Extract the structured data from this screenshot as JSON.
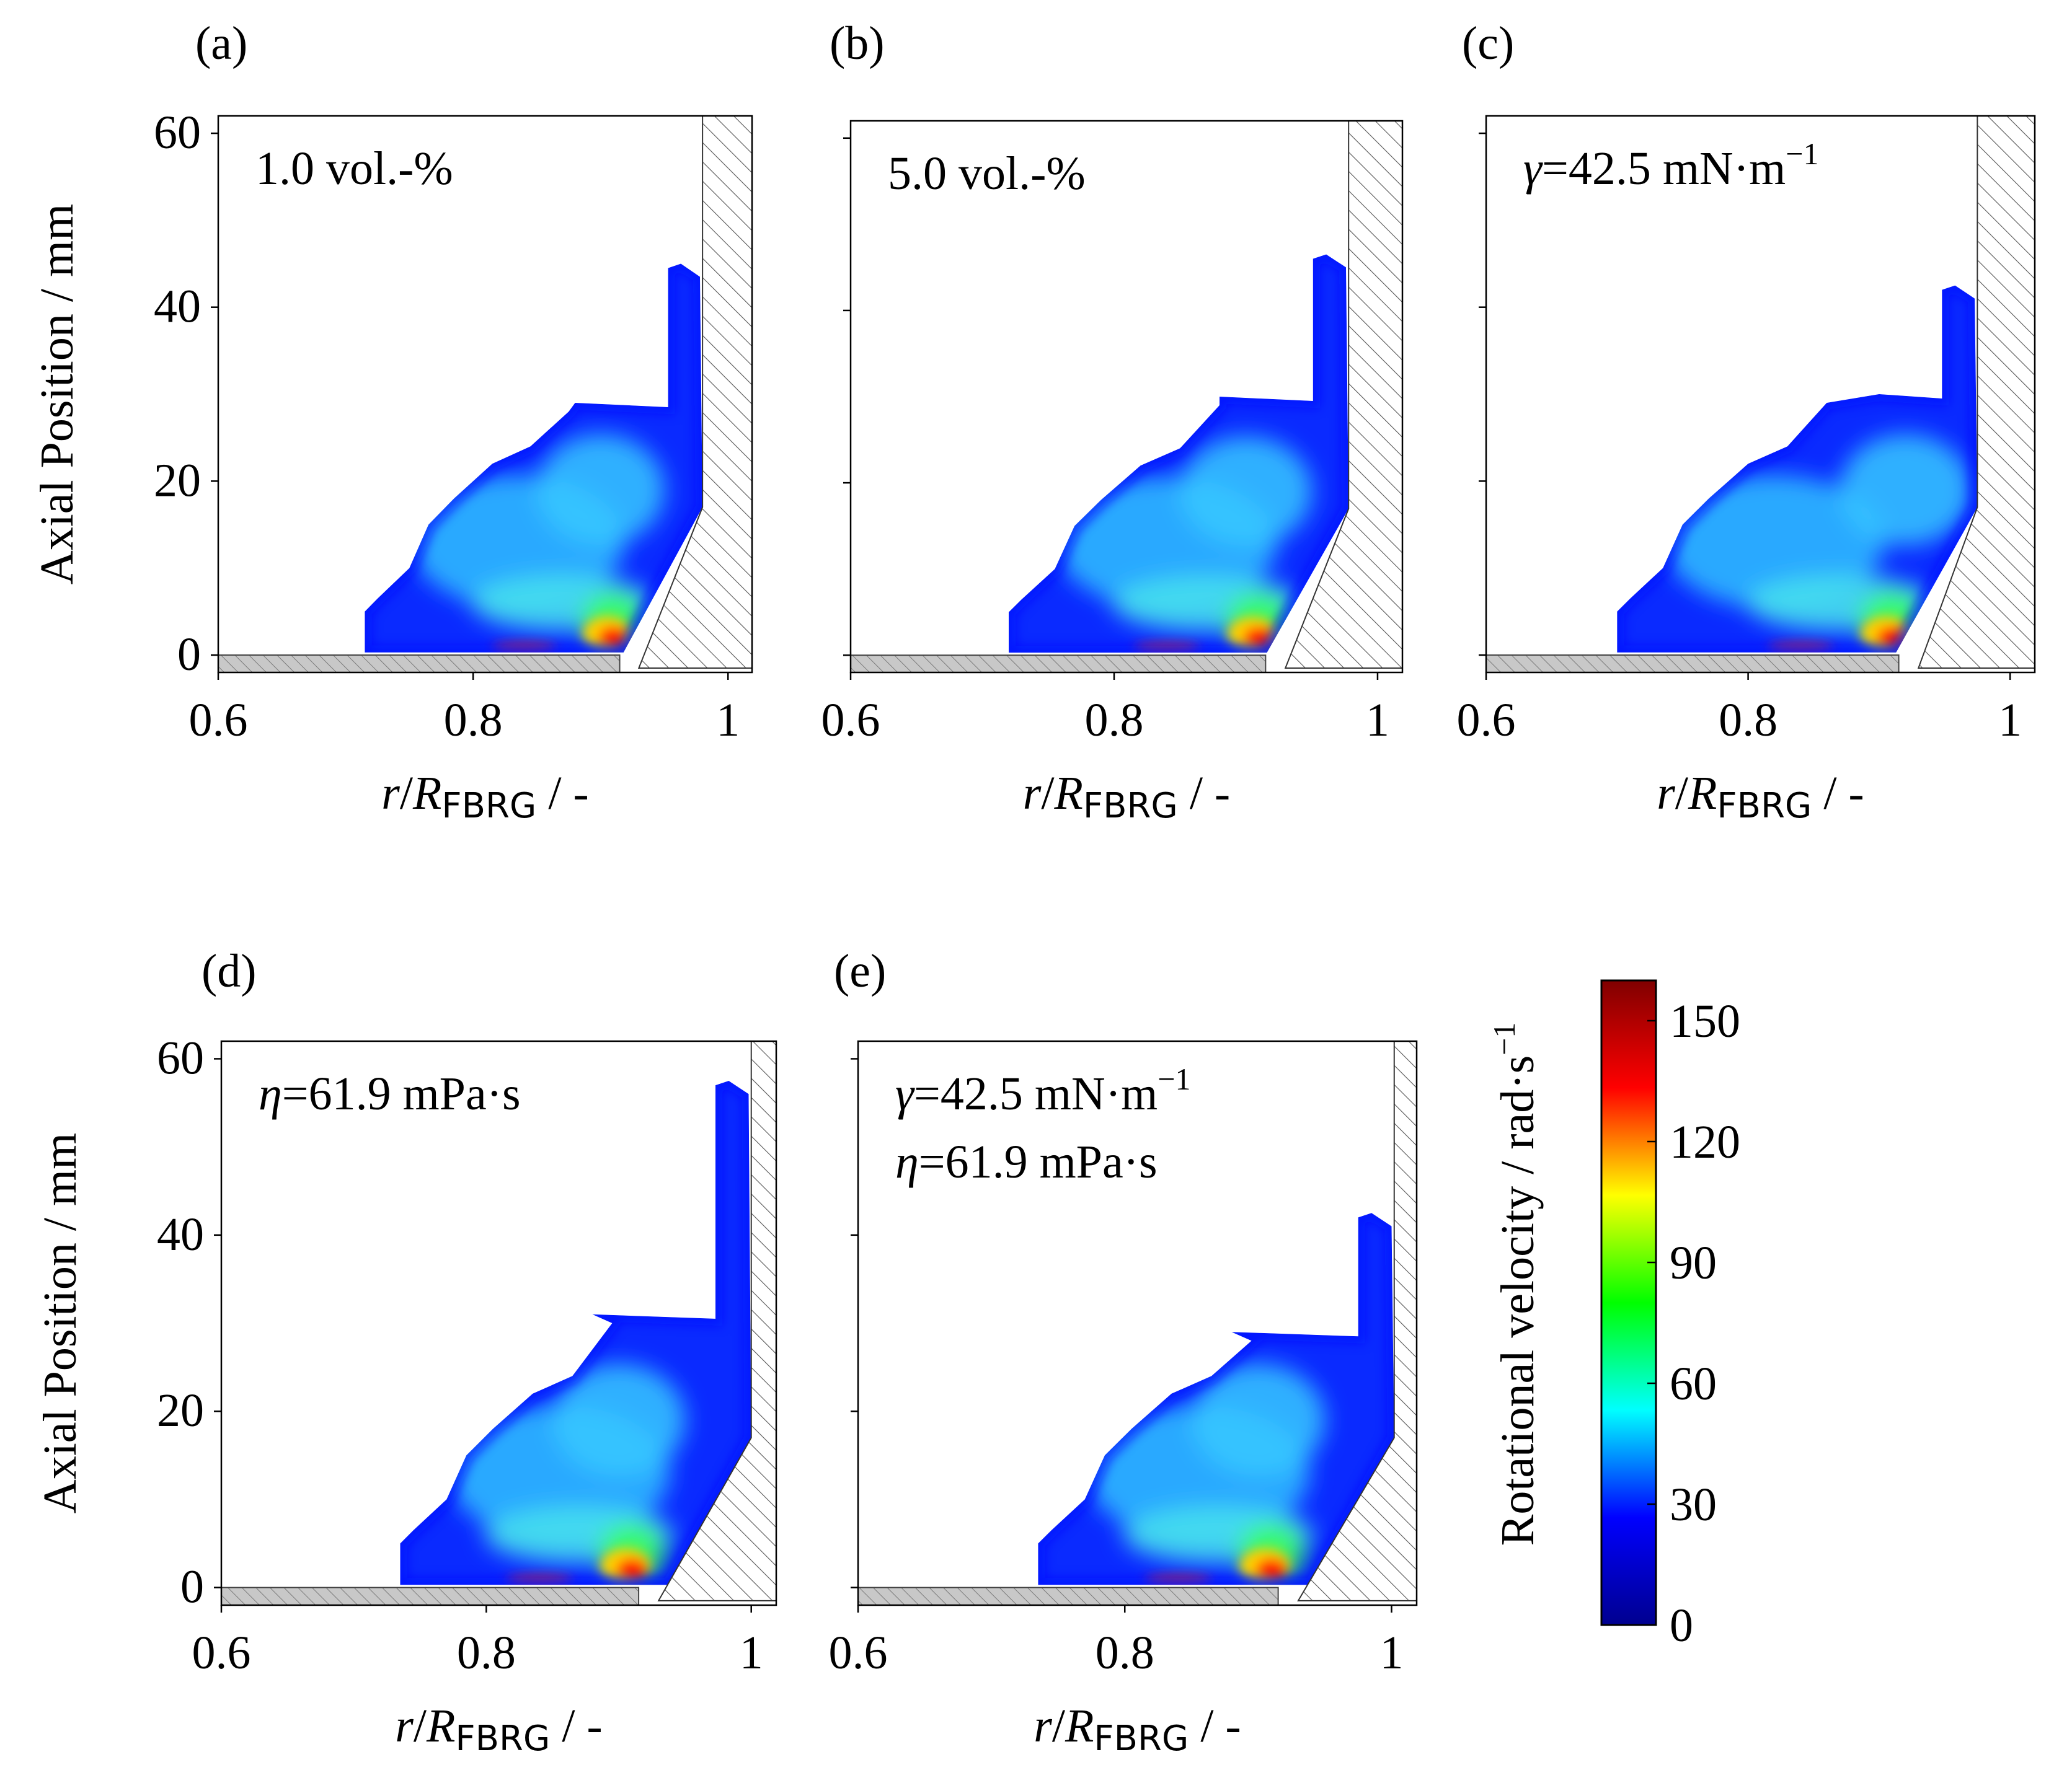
{
  "figure": {
    "panels": [
      {
        "id": "a",
        "label": "(a)",
        "annotation_lines": [
          {
            "symbol": "",
            "value": "1.0 vol.-%",
            "sup": ""
          }
        ],
        "top_mm": 44.5,
        "shelf_mm": 29,
        "plateau_r": 0.88,
        "start_r": 0.715,
        "inner_r": 0.968,
        "show_y_labels": true
      },
      {
        "id": "b",
        "label": "(b)",
        "annotation_lines": [
          {
            "symbol": "",
            "value": "5.0 vol.-%",
            "sup": ""
          }
        ],
        "top_mm": 46,
        "shelf_mm": 30,
        "plateau_r": 0.88,
        "start_r": 0.72,
        "inner_r": 0.966,
        "show_y_labels": false
      },
      {
        "id": "c",
        "label": "(c)",
        "annotation_lines": [
          {
            "symbol": "γ",
            "value": "=42.5 mN·m",
            "sup": "−1"
          }
        ],
        "top_mm": 42,
        "shelf_mm": 30,
        "plateau_r": 0.9,
        "start_r": 0.7,
        "inner_r": 0.963,
        "show_y_labels": false
      },
      {
        "id": "d",
        "label": "(d)",
        "annotation_lines": [
          {
            "symbol": "η",
            "value": "=61.9 mPa·s",
            "sup": ""
          }
        ],
        "top_mm": 57,
        "shelf_mm": 31,
        "plateau_r": 0.88,
        "start_r": 0.735,
        "inner_r": 0.988,
        "show_y_labels": true
      },
      {
        "id": "e",
        "label": "(e)",
        "annotation_lines": [
          {
            "symbol": "γ",
            "value": "=42.5 mN·m",
            "sup": "−1"
          },
          {
            "symbol": "η",
            "value": "=61.9 mPa·s",
            "sup": ""
          }
        ],
        "top_mm": 42,
        "shelf_mm": 29,
        "plateau_r": 0.88,
        "start_r": 0.735,
        "inner_r": 0.99,
        "show_y_labels": false
      }
    ],
    "colorbar": {
      "label": "Rotational velocity / rad·s",
      "label_sup": "−1",
      "range": [
        0,
        160
      ],
      "ticks": [
        "0",
        "30",
        "60",
        "90",
        "120",
        "150"
      ],
      "tick_values": [
        0,
        30,
        60,
        90,
        120,
        150
      ],
      "colormap": [
        "#00008f",
        "#0000ff",
        "#00ffff",
        "#00ff00",
        "#ffff00",
        "#ff0000",
        "#800000"
      ]
    }
  },
  "chart_data": [
    {
      "type": "heatmap",
      "title": "(a) 1.0 vol.-%",
      "xlabel": "r/R_FBRG / -",
      "ylabel": "Axial Position / mm",
      "xlim": [
        0.6,
        1.0
      ],
      "ylim": [
        -2,
        62
      ],
      "xticks": [
        "0.6",
        "0.8",
        "1"
      ],
      "yticks": [
        "0",
        "20",
        "40",
        "60"
      ],
      "colorbar_range": [
        0,
        160
      ],
      "max_value_near": {
        "r": 0.91,
        "z": 2,
        "value": 155
      }
    },
    {
      "type": "heatmap",
      "title": "(b) 5.0 vol.-%",
      "xlabel": "r/R_FBRG / -",
      "ylabel": "Axial Position / mm",
      "xlim": [
        0.6,
        1.0
      ],
      "ylim": [
        -2,
        62
      ],
      "xticks": [
        "0.6",
        "0.8",
        "1"
      ],
      "yticks": [],
      "colorbar_range": [
        0,
        160
      ],
      "max_value_near": {
        "r": 0.91,
        "z": 2,
        "value": 155
      }
    },
    {
      "type": "heatmap",
      "title": "(c) γ=42.5 mN·m−1",
      "xlabel": "r/R_FBRG / -",
      "ylabel": "Axial Position / mm",
      "xlim": [
        0.6,
        1.0
      ],
      "ylim": [
        -2,
        62
      ],
      "xticks": [
        "0.6",
        "0.8",
        "1"
      ],
      "yticks": [],
      "colorbar_range": [
        0,
        160
      ],
      "max_value_near": {
        "r": 0.915,
        "z": 3,
        "value": 155
      }
    },
    {
      "type": "heatmap",
      "title": "(d) η=61.9 mPa·s",
      "xlabel": "r/R_FBRG / -",
      "ylabel": "Axial Position / mm",
      "xlim": [
        0.6,
        1.0
      ],
      "ylim": [
        -2,
        62
      ],
      "xticks": [
        "0.6",
        "0.8",
        "1"
      ],
      "yticks": [
        "0",
        "20",
        "40",
        "60"
      ],
      "colorbar_range": [
        0,
        160
      ],
      "max_value_near": {
        "r": 0.92,
        "z": 1,
        "value": 155
      }
    },
    {
      "type": "heatmap",
      "title": "(e) γ=42.5 mN·m−1, η=61.9 mPa·s",
      "xlabel": "r/R_FBRG / -",
      "ylabel": "Axial Position / mm",
      "xlim": [
        0.6,
        1.0
      ],
      "ylim": [
        -2,
        62
      ],
      "xticks": [
        "0.6",
        "0.8",
        "1"
      ],
      "yticks": [],
      "colorbar_range": [
        0,
        160
      ],
      "max_value_near": {
        "r": 0.92,
        "z": 2,
        "value": 155
      }
    }
  ],
  "common": {
    "y_axis_label": "Axial Position / mm",
    "x_axis_label_r": "r",
    "x_axis_label_slash": "/",
    "x_axis_label_R": "R",
    "x_axis_label_sub": "FBRG",
    "x_axis_label_tail": " / -"
  }
}
